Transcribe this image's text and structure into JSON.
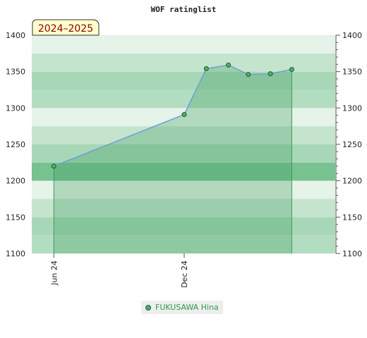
{
  "chart_data": {
    "type": "area",
    "title": "WOF ratinglist",
    "season_label": "2024–2025",
    "ylim": [
      1100,
      1400
    ],
    "yticks": [
      1100,
      1150,
      1200,
      1250,
      1300,
      1350,
      1400
    ],
    "xlim": [
      "2024-05-01",
      "2025-07-01"
    ],
    "xticks": [
      {
        "date": "2024-06-01",
        "label": "Jun 24"
      },
      {
        "date": "2024-12-01",
        "label": "Dec 24"
      }
    ],
    "series": [
      {
        "name": "FUKUSAWA Hina",
        "points": [
          {
            "x": "2024-06-01",
            "y": 1220
          },
          {
            "x": "2024-12-01",
            "y": 1291
          },
          {
            "x": "2025-01-01",
            "y": 1354
          },
          {
            "x": "2025-02-01",
            "y": 1359
          },
          {
            "x": "2025-03-01",
            "y": 1346
          },
          {
            "x": "2025-04-01",
            "y": 1347
          },
          {
            "x": "2025-05-01",
            "y": 1353
          }
        ]
      }
    ],
    "grid": true,
    "legend_position": "bottom"
  },
  "colors": {
    "band_light": "#eef7ef",
    "band_dark": "#78c292",
    "fill": "#3d9a5c",
    "line": "#6b9fd8",
    "marker": "#4caf6a",
    "marker_stroke": "#1e5e30",
    "badge_bg": "#ffffcc",
    "badge_text": "#8b0000",
    "legend_text": "#2e9a4e"
  }
}
